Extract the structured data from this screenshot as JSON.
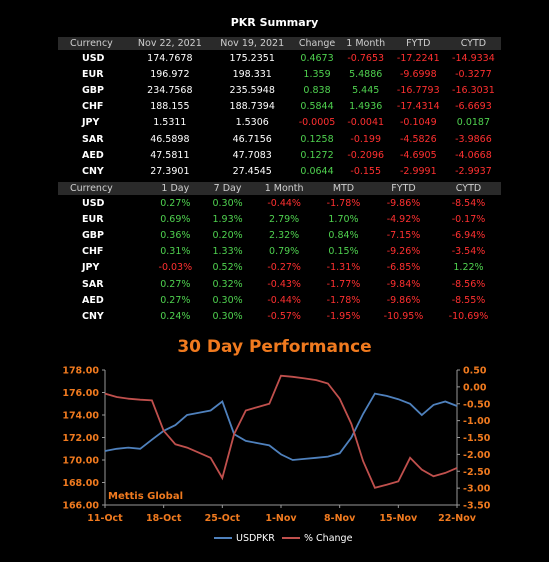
{
  "summary": {
    "title": "PKR Summary",
    "table1": {
      "headers": [
        "Currency",
        "Nov 22, 2021",
        "Nov 19, 2021",
        "Change",
        "1 Month",
        "FYTD",
        "CYTD"
      ],
      "rows": [
        [
          "USD",
          "174.7678",
          "175.2351",
          "0.4673",
          "-0.7653",
          "-17.2241",
          "-14.9334"
        ],
        [
          "EUR",
          "196.972",
          "198.331",
          "1.359",
          "5.4886",
          "-9.6998",
          "-0.3277"
        ],
        [
          "GBP",
          "234.7568",
          "235.5948",
          "0.838",
          "5.445",
          "-16.7793",
          "-16.3031"
        ],
        [
          "CHF",
          "188.155",
          "188.7394",
          "0.5844",
          "1.4936",
          "-17.4314",
          "-6.6693"
        ],
        [
          "JPY",
          "1.5311",
          "1.5306",
          "-0.0005",
          "-0.0041",
          "-0.1049",
          "0.0187"
        ],
        [
          "SAR",
          "46.5898",
          "46.7156",
          "0.1258",
          "-0.199",
          "-4.5826",
          "-3.9866"
        ],
        [
          "AED",
          "47.5811",
          "47.7083",
          "0.1272",
          "-0.2096",
          "-4.6905",
          "-4.0668"
        ],
        [
          "CNY",
          "27.3901",
          "27.4545",
          "0.0644",
          "-0.155",
          "-2.9991",
          "-2.9937"
        ]
      ]
    },
    "table2": {
      "headers": [
        "Currency",
        "1 Day",
        "7 Day",
        "1 Month",
        "MTD",
        "FYTD",
        "CYTD"
      ],
      "rows": [
        [
          "USD",
          "0.27%",
          "0.30%",
          "-0.44%",
          "-1.78%",
          "-9.86%",
          "-8.54%"
        ],
        [
          "EUR",
          "0.69%",
          "1.93%",
          "2.79%",
          "1.70%",
          "-4.92%",
          "-0.17%"
        ],
        [
          "GBP",
          "0.36%",
          "0.20%",
          "2.32%",
          "0.84%",
          "-7.15%",
          "-6.94%"
        ],
        [
          "CHF",
          "0.31%",
          "1.33%",
          "0.79%",
          "0.15%",
          "-9.26%",
          "-3.54%"
        ],
        [
          "JPY",
          "-0.03%",
          "0.52%",
          "-0.27%",
          "-1.31%",
          "-6.85%",
          "1.22%"
        ],
        [
          "SAR",
          "0.27%",
          "0.32%",
          "-0.43%",
          "-1.77%",
          "-9.84%",
          "-8.56%"
        ],
        [
          "AED",
          "0.27%",
          "0.30%",
          "-0.44%",
          "-1.78%",
          "-9.86%",
          "-8.55%"
        ],
        [
          "CNY",
          "0.24%",
          "0.30%",
          "-0.57%",
          "-1.95%",
          "-10.95%",
          "-10.69%"
        ]
      ]
    }
  },
  "chart_data": {
    "type": "line",
    "title": "30 Day Performance",
    "watermark": "Mettis Global",
    "x_ticks": [
      "11-Oct",
      "18-Oct",
      "25-Oct",
      "1-Nov",
      "8-Nov",
      "15-Nov",
      "22-Nov"
    ],
    "x": [
      "11-Oct",
      "12-Oct",
      "13-Oct",
      "14-Oct",
      "15-Oct",
      "18-Oct",
      "19-Oct",
      "20-Oct",
      "21-Oct",
      "22-Oct",
      "25-Oct",
      "26-Oct",
      "27-Oct",
      "28-Oct",
      "29-Oct",
      "1-Nov",
      "2-Nov",
      "3-Nov",
      "4-Nov",
      "5-Nov",
      "8-Nov",
      "9-Nov",
      "10-Nov",
      "11-Nov",
      "12-Nov",
      "15-Nov",
      "16-Nov",
      "17-Nov",
      "18-Nov",
      "19-Nov",
      "22-Nov"
    ],
    "y_left_ticks": [
      "166.00",
      "168.00",
      "170.00",
      "172.00",
      "174.00",
      "176.00",
      "178.00"
    ],
    "y_right_ticks": [
      "-3.50",
      "-3.00",
      "-2.50",
      "-2.00",
      "-1.50",
      "-1.00",
      "-0.50",
      "0.00",
      "0.50"
    ],
    "ylim_left": [
      166,
      178
    ],
    "ylim_right": [
      -3.5,
      0.5
    ],
    "series": [
      {
        "name": "USDPKR",
        "axis": "left",
        "color": "#4f81bd",
        "values": [
          170.8,
          171.0,
          171.1,
          171.0,
          171.8,
          172.6,
          173.1,
          174.0,
          174.2,
          174.4,
          175.2,
          172.3,
          171.7,
          171.5,
          171.3,
          170.5,
          170.0,
          170.1,
          170.2,
          170.3,
          170.6,
          172.0,
          174.1,
          175.9,
          175.7,
          175.4,
          175.0,
          174.0,
          174.9,
          175.2,
          174.8
        ]
      },
      {
        "name": "% Change",
        "axis": "right",
        "color": "#c0504d",
        "values": [
          -0.2,
          -0.3,
          -0.35,
          -0.38,
          -0.4,
          -1.3,
          -1.7,
          -1.8,
          -1.95,
          -2.1,
          -2.7,
          -1.4,
          -0.7,
          -0.6,
          -0.5,
          0.33,
          0.3,
          0.25,
          0.2,
          0.1,
          -0.35,
          -1.1,
          -2.2,
          -2.99,
          -2.9,
          -2.8,
          -2.1,
          -2.45,
          -2.65,
          -2.55,
          -2.4
        ]
      }
    ],
    "legend": [
      "USDPKR",
      "% Change"
    ],
    "legend_position": "bottom",
    "grid": false
  }
}
